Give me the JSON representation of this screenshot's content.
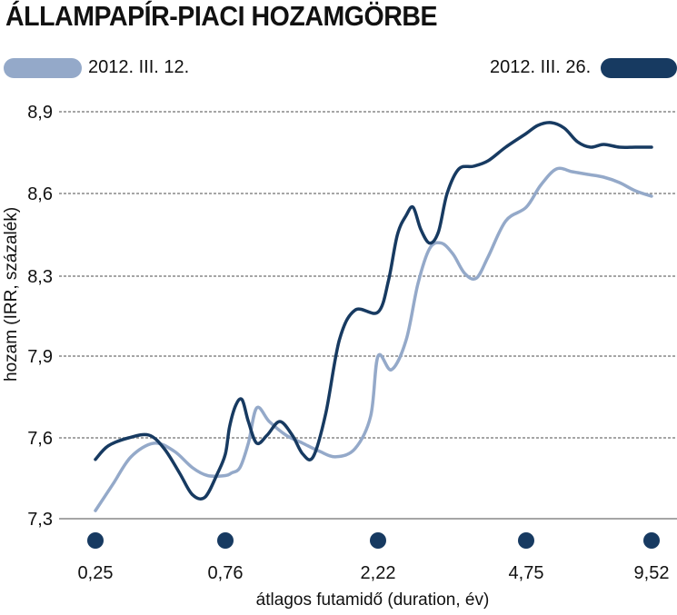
{
  "title": "ÁLLAMPAPÍR-PIACI HOZAMGÖRBE",
  "colors": {
    "series1": "#94a9c9",
    "series2": "#173a61",
    "marker": "#173a61",
    "grid": "#888888"
  },
  "chart_data": {
    "type": "line",
    "title": "ÁLLAMPAPÍR-PIACI HOZAMGÖRBE",
    "ylabel": "hozam (IRR, százalék)",
    "xlabel": "átlagos futamidő (duration, év)",
    "yticks": [
      "7,3",
      "7,6",
      "7,9",
      "8,3",
      "8,6",
      "8,9"
    ],
    "ytick_values": [
      7.3,
      7.6,
      7.9,
      8.3,
      8.6,
      8.9
    ],
    "xticks": [
      "0,25",
      "0,76",
      "2,22",
      "4,75",
      "9,52"
    ],
    "xtick_values": [
      0.25,
      0.76,
      2.22,
      4.75,
      9.52
    ],
    "grid": true,
    "legend": "top",
    "series": [
      {
        "name": "2012. III. 12.",
        "x": [
          0.25,
          0.32,
          0.39,
          0.48,
          0.56,
          0.63,
          0.69,
          0.76,
          0.82,
          0.9,
          0.98,
          1.06,
          1.18,
          1.34,
          1.5,
          1.66,
          1.82,
          2.0,
          2.15,
          2.22,
          2.45,
          2.7,
          2.9,
          3.1,
          3.3,
          3.5,
          3.7,
          3.9,
          4.1,
          4.4,
          4.75,
          5.3,
          5.9,
          6.5,
          7.1,
          7.7,
          8.3,
          8.9,
          9.52
        ],
        "values": [
          7.33,
          7.43,
          7.53,
          7.58,
          7.55,
          7.49,
          7.46,
          7.46,
          7.47,
          7.49,
          7.58,
          7.71,
          7.66,
          7.61,
          7.58,
          7.55,
          7.53,
          7.56,
          7.68,
          7.9,
          7.85,
          7.98,
          8.26,
          8.4,
          8.42,
          8.38,
          8.31,
          8.29,
          8.37,
          8.5,
          8.55,
          8.63,
          8.69,
          8.68,
          8.67,
          8.66,
          8.64,
          8.61,
          8.59
        ]
      },
      {
        "name": "2012. III. 26.",
        "x": [
          0.25,
          0.3,
          0.38,
          0.46,
          0.52,
          0.58,
          0.63,
          0.68,
          0.73,
          0.76,
          0.8,
          0.86,
          0.92,
          0.98,
          1.06,
          1.16,
          1.28,
          1.4,
          1.5,
          1.6,
          1.72,
          1.85,
          2.0,
          2.22,
          2.4,
          2.55,
          2.7,
          2.82,
          2.95,
          3.1,
          3.25,
          3.4,
          3.6,
          3.85,
          4.1,
          4.4,
          4.75,
          5.2,
          5.7,
          6.2,
          6.7,
          7.2,
          7.7,
          8.3,
          8.9,
          9.52
        ],
        "values": [
          7.52,
          7.57,
          7.6,
          7.61,
          7.56,
          7.47,
          7.39,
          7.38,
          7.47,
          7.54,
          7.64,
          7.72,
          7.74,
          7.66,
          7.58,
          7.61,
          7.66,
          7.61,
          7.54,
          7.53,
          7.69,
          7.98,
          8.13,
          8.12,
          8.28,
          8.45,
          8.52,
          8.55,
          8.47,
          8.42,
          8.46,
          8.6,
          8.69,
          8.7,
          8.72,
          8.77,
          8.82,
          8.85,
          8.86,
          8.84,
          8.79,
          8.77,
          8.78,
          8.77,
          8.77,
          8.77
        ]
      }
    ]
  }
}
